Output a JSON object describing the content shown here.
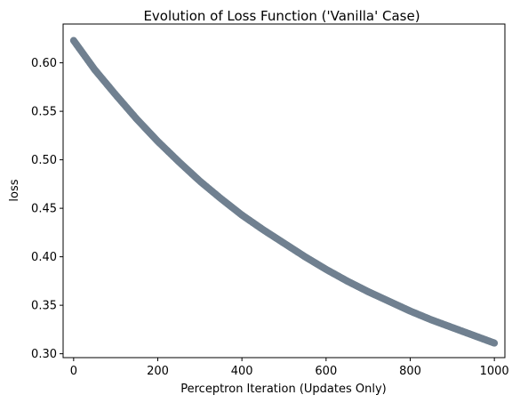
{
  "chart_data": {
    "type": "scatter",
    "title": "Evolution of Loss Function ('Vanilla' Case)",
    "xlabel": "Perceptron Iteration (Updates Only)",
    "ylabel": "loss",
    "xlim": [
      -25,
      1025
    ],
    "ylim": [
      0.296,
      0.64
    ],
    "xticks": [
      0,
      200,
      400,
      600,
      800,
      1000
    ],
    "xtick_labels": [
      "0",
      "200",
      "400",
      "600",
      "800",
      "1000"
    ],
    "yticks": [
      0.3,
      0.35,
      0.4,
      0.45,
      0.5,
      0.55,
      0.6
    ],
    "ytick_labels": [
      "0.30",
      "0.35",
      "0.40",
      "0.45",
      "0.50",
      "0.55",
      "0.60"
    ],
    "grid": false,
    "legend": "none",
    "series": [
      {
        "color": "#708090",
        "x": [
          0,
          50,
          100,
          150,
          200,
          250,
          300,
          350,
          400,
          450,
          500,
          550,
          600,
          650,
          700,
          750,
          800,
          850,
          900,
          950,
          1000
        ],
        "y": [
          0.623,
          0.593,
          0.567,
          0.542,
          0.519,
          0.498,
          0.478,
          0.46,
          0.443,
          0.428,
          0.414,
          0.4,
          0.387,
          0.375,
          0.364,
          0.354,
          0.344,
          0.335,
          0.327,
          0.319,
          0.311
        ]
      }
    ]
  }
}
